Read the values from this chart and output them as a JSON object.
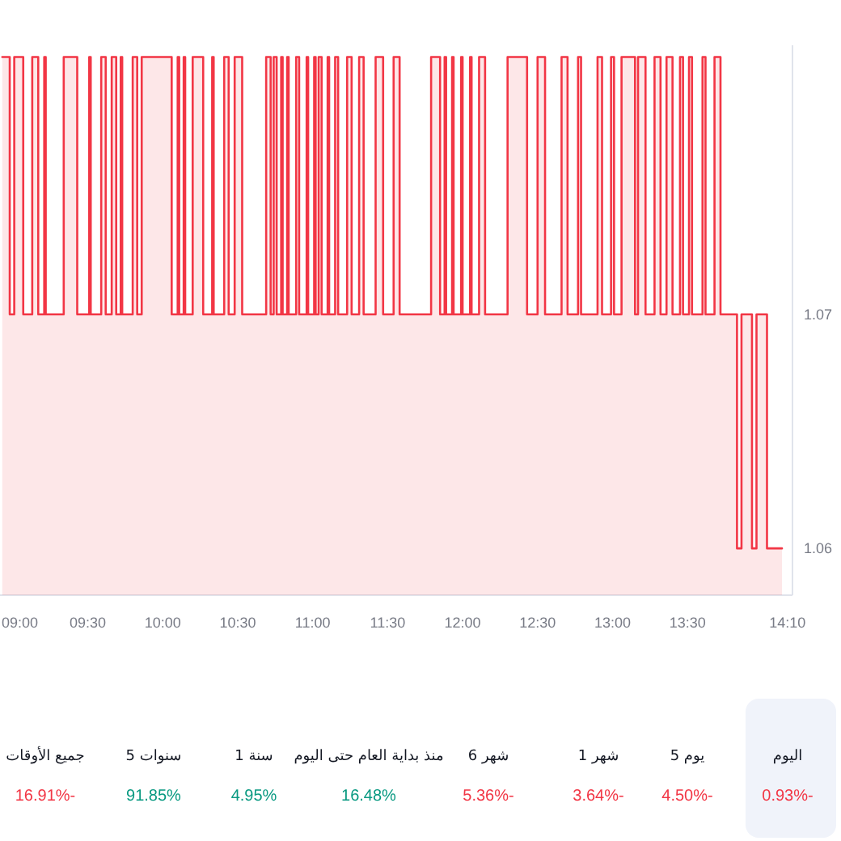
{
  "chart_data": [
    {
      "type": "area",
      "color": "#f23645",
      "x": [
        8.93,
        8.98,
        8.98,
        9.01,
        9.01,
        9.07,
        9.07,
        9.13,
        9.13,
        9.17,
        9.17,
        9.21,
        9.21,
        9.22,
        9.22,
        9.34,
        9.34,
        9.43,
        9.43,
        9.51,
        9.51,
        9.52,
        9.52,
        9.59,
        9.59,
        9.62,
        9.62,
        9.66,
        9.66,
        9.69,
        9.69,
        9.72,
        9.72,
        9.73,
        9.73,
        9.8,
        9.8,
        9.83,
        9.83,
        9.86,
        9.86,
        10.06,
        10.06,
        10.1,
        10.1,
        10.11,
        10.11,
        10.14,
        10.14,
        10.15,
        10.15,
        10.2,
        10.2,
        10.27,
        10.27,
        10.33,
        10.33,
        10.34,
        10.34,
        10.41,
        10.41,
        10.44,
        10.44,
        10.48,
        10.48,
        10.53,
        10.53,
        10.69,
        10.69,
        10.72,
        10.72,
        10.74,
        10.74,
        10.76,
        10.76,
        10.79,
        10.79,
        10.8,
        10.8,
        10.83,
        10.83,
        10.84,
        10.84,
        10.89,
        10.89,
        10.91,
        10.91,
        10.96,
        10.96,
        10.97,
        10.97,
        11.01,
        11.01,
        11.02,
        11.02,
        11.04,
        11.04,
        11.06,
        11.06,
        11.1,
        11.1,
        11.11,
        11.11,
        11.15,
        11.15,
        11.17,
        11.17,
        11.23,
        11.23,
        11.26,
        11.26,
        11.31,
        11.31,
        11.34,
        11.34,
        11.42,
        11.42,
        11.47,
        11.47,
        11.54,
        11.54,
        11.58,
        11.58,
        11.79,
        11.79,
        11.85,
        11.85,
        11.88,
        11.88,
        11.89,
        11.89,
        11.93,
        11.93,
        11.94,
        11.94,
        11.99,
        11.99,
        12.0,
        12.0,
        12.05,
        12.05,
        12.06,
        12.06,
        12.11,
        12.11,
        12.15,
        12.15,
        12.3,
        12.3,
        12.43,
        12.43,
        12.5,
        12.5,
        12.55,
        12.55,
        12.66,
        12.66,
        12.7,
        12.7,
        12.77,
        12.77,
        12.79,
        12.79,
        12.9,
        12.9,
        12.93,
        12.93,
        12.99,
        12.99,
        13.01,
        13.01,
        13.06,
        13.06,
        13.15,
        13.15,
        13.17,
        13.17,
        13.22,
        13.22,
        13.28,
        13.28,
        13.32,
        13.32,
        13.36,
        13.36,
        13.4,
        13.4,
        13.45,
        13.45,
        13.47,
        13.47,
        13.51,
        13.51,
        13.53,
        13.53,
        13.6,
        13.6,
        13.62,
        13.62,
        13.68,
        13.68,
        13.72,
        13.72,
        13.83,
        13.83,
        13.86,
        13.86,
        13.93,
        13.93,
        13.96,
        13.96,
        14.03,
        14.03,
        14.13
      ],
      "values": [
        1.081,
        1.081,
        1.07,
        1.07,
        1.081,
        1.081,
        1.07,
        1.07,
        1.081,
        1.081,
        1.07,
        1.07,
        1.081,
        1.081,
        1.07,
        1.07,
        1.081,
        1.081,
        1.07,
        1.07,
        1.081,
        1.081,
        1.07,
        1.07,
        1.081,
        1.081,
        1.07,
        1.07,
        1.081,
        1.081,
        1.07,
        1.07,
        1.081,
        1.081,
        1.07,
        1.07,
        1.081,
        1.081,
        1.07,
        1.07,
        1.081,
        1.081,
        1.07,
        1.07,
        1.081,
        1.081,
        1.07,
        1.07,
        1.081,
        1.081,
        1.07,
        1.07,
        1.081,
        1.081,
        1.07,
        1.07,
        1.081,
        1.081,
        1.07,
        1.07,
        1.081,
        1.081,
        1.07,
        1.07,
        1.081,
        1.081,
        1.07,
        1.07,
        1.081,
        1.081,
        1.07,
        1.07,
        1.081,
        1.081,
        1.07,
        1.07,
        1.081,
        1.081,
        1.07,
        1.07,
        1.081,
        1.081,
        1.07,
        1.07,
        1.081,
        1.081,
        1.07,
        1.07,
        1.081,
        1.081,
        1.07,
        1.07,
        1.081,
        1.081,
        1.07,
        1.07,
        1.081,
        1.081,
        1.07,
        1.07,
        1.081,
        1.081,
        1.07,
        1.07,
        1.081,
        1.081,
        1.07,
        1.07,
        1.081,
        1.081,
        1.07,
        1.07,
        1.081,
        1.081,
        1.07,
        1.07,
        1.081,
        1.081,
        1.07,
        1.07,
        1.081,
        1.081,
        1.07,
        1.07,
        1.081,
        1.081,
        1.07,
        1.07,
        1.081,
        1.081,
        1.07,
        1.07,
        1.081,
        1.081,
        1.07,
        1.07,
        1.081,
        1.081,
        1.07,
        1.07,
        1.081,
        1.081,
        1.07,
        1.07,
        1.081,
        1.081,
        1.07,
        1.07,
        1.081,
        1.081,
        1.07,
        1.07,
        1.081,
        1.081,
        1.07,
        1.07,
        1.081,
        1.081,
        1.07,
        1.07,
        1.081,
        1.081,
        1.07,
        1.07,
        1.081,
        1.081,
        1.07,
        1.07,
        1.081,
        1.081,
        1.07,
        1.07,
        1.081,
        1.081,
        1.07,
        1.07,
        1.081,
        1.081,
        1.07,
        1.07,
        1.081,
        1.081,
        1.07,
        1.07,
        1.081,
        1.081,
        1.07,
        1.07,
        1.081,
        1.081,
        1.07,
        1.07,
        1.081,
        1.081,
        1.07,
        1.07,
        1.081,
        1.081,
        1.07,
        1.07,
        1.081,
        1.081,
        1.07,
        1.07,
        1.06,
        1.06,
        1.07,
        1.07,
        1.06,
        1.06,
        1.07,
        1.07,
        1.06,
        1.06
      ],
      "xlim": [
        8.915,
        14.2
      ],
      "ylim": [
        1.058,
        1.0815
      ],
      "xticks": [
        {
          "value": 9,
          "label": "09:00"
        },
        {
          "value": 9.5,
          "label": "09:30"
        },
        {
          "value": 10,
          "label": "10:00"
        },
        {
          "value": 10.5,
          "label": "10:30"
        },
        {
          "value": 11,
          "label": "11:00"
        },
        {
          "value": 11.5,
          "label": "11:30"
        },
        {
          "value": 12,
          "label": "12:00"
        },
        {
          "value": 12.5,
          "label": "12:30"
        },
        {
          "value": 13,
          "label": "13:00"
        },
        {
          "value": 13.5,
          "label": "13:30"
        },
        {
          "value": 14.1667,
          "label": "14:10"
        }
      ],
      "yticks": [
        {
          "value": 1.07,
          "label": "1.07"
        },
        {
          "value": 1.06,
          "label": "1.06"
        }
      ]
    },
    {
      "type": "other",
      "categories": [
        "اليوم",
        "يوم 5",
        "شهر 1",
        "شهر 6",
        "منذ بداية العام حتى اليوم",
        "سنة 1",
        "سنوات 5",
        "جميع الأوقات"
      ],
      "value_labels": [
        "0.93%-",
        "4.50%-",
        "3.64%-",
        "5.36%-",
        "16.48%",
        "4.95%",
        "91.85%",
        "16.91%-"
      ],
      "colors": [
        "#f23645",
        "#f23645",
        "#f23645",
        "#f23645",
        "#089981",
        "#089981",
        "#089981",
        "#f23645"
      ]
    }
  ]
}
